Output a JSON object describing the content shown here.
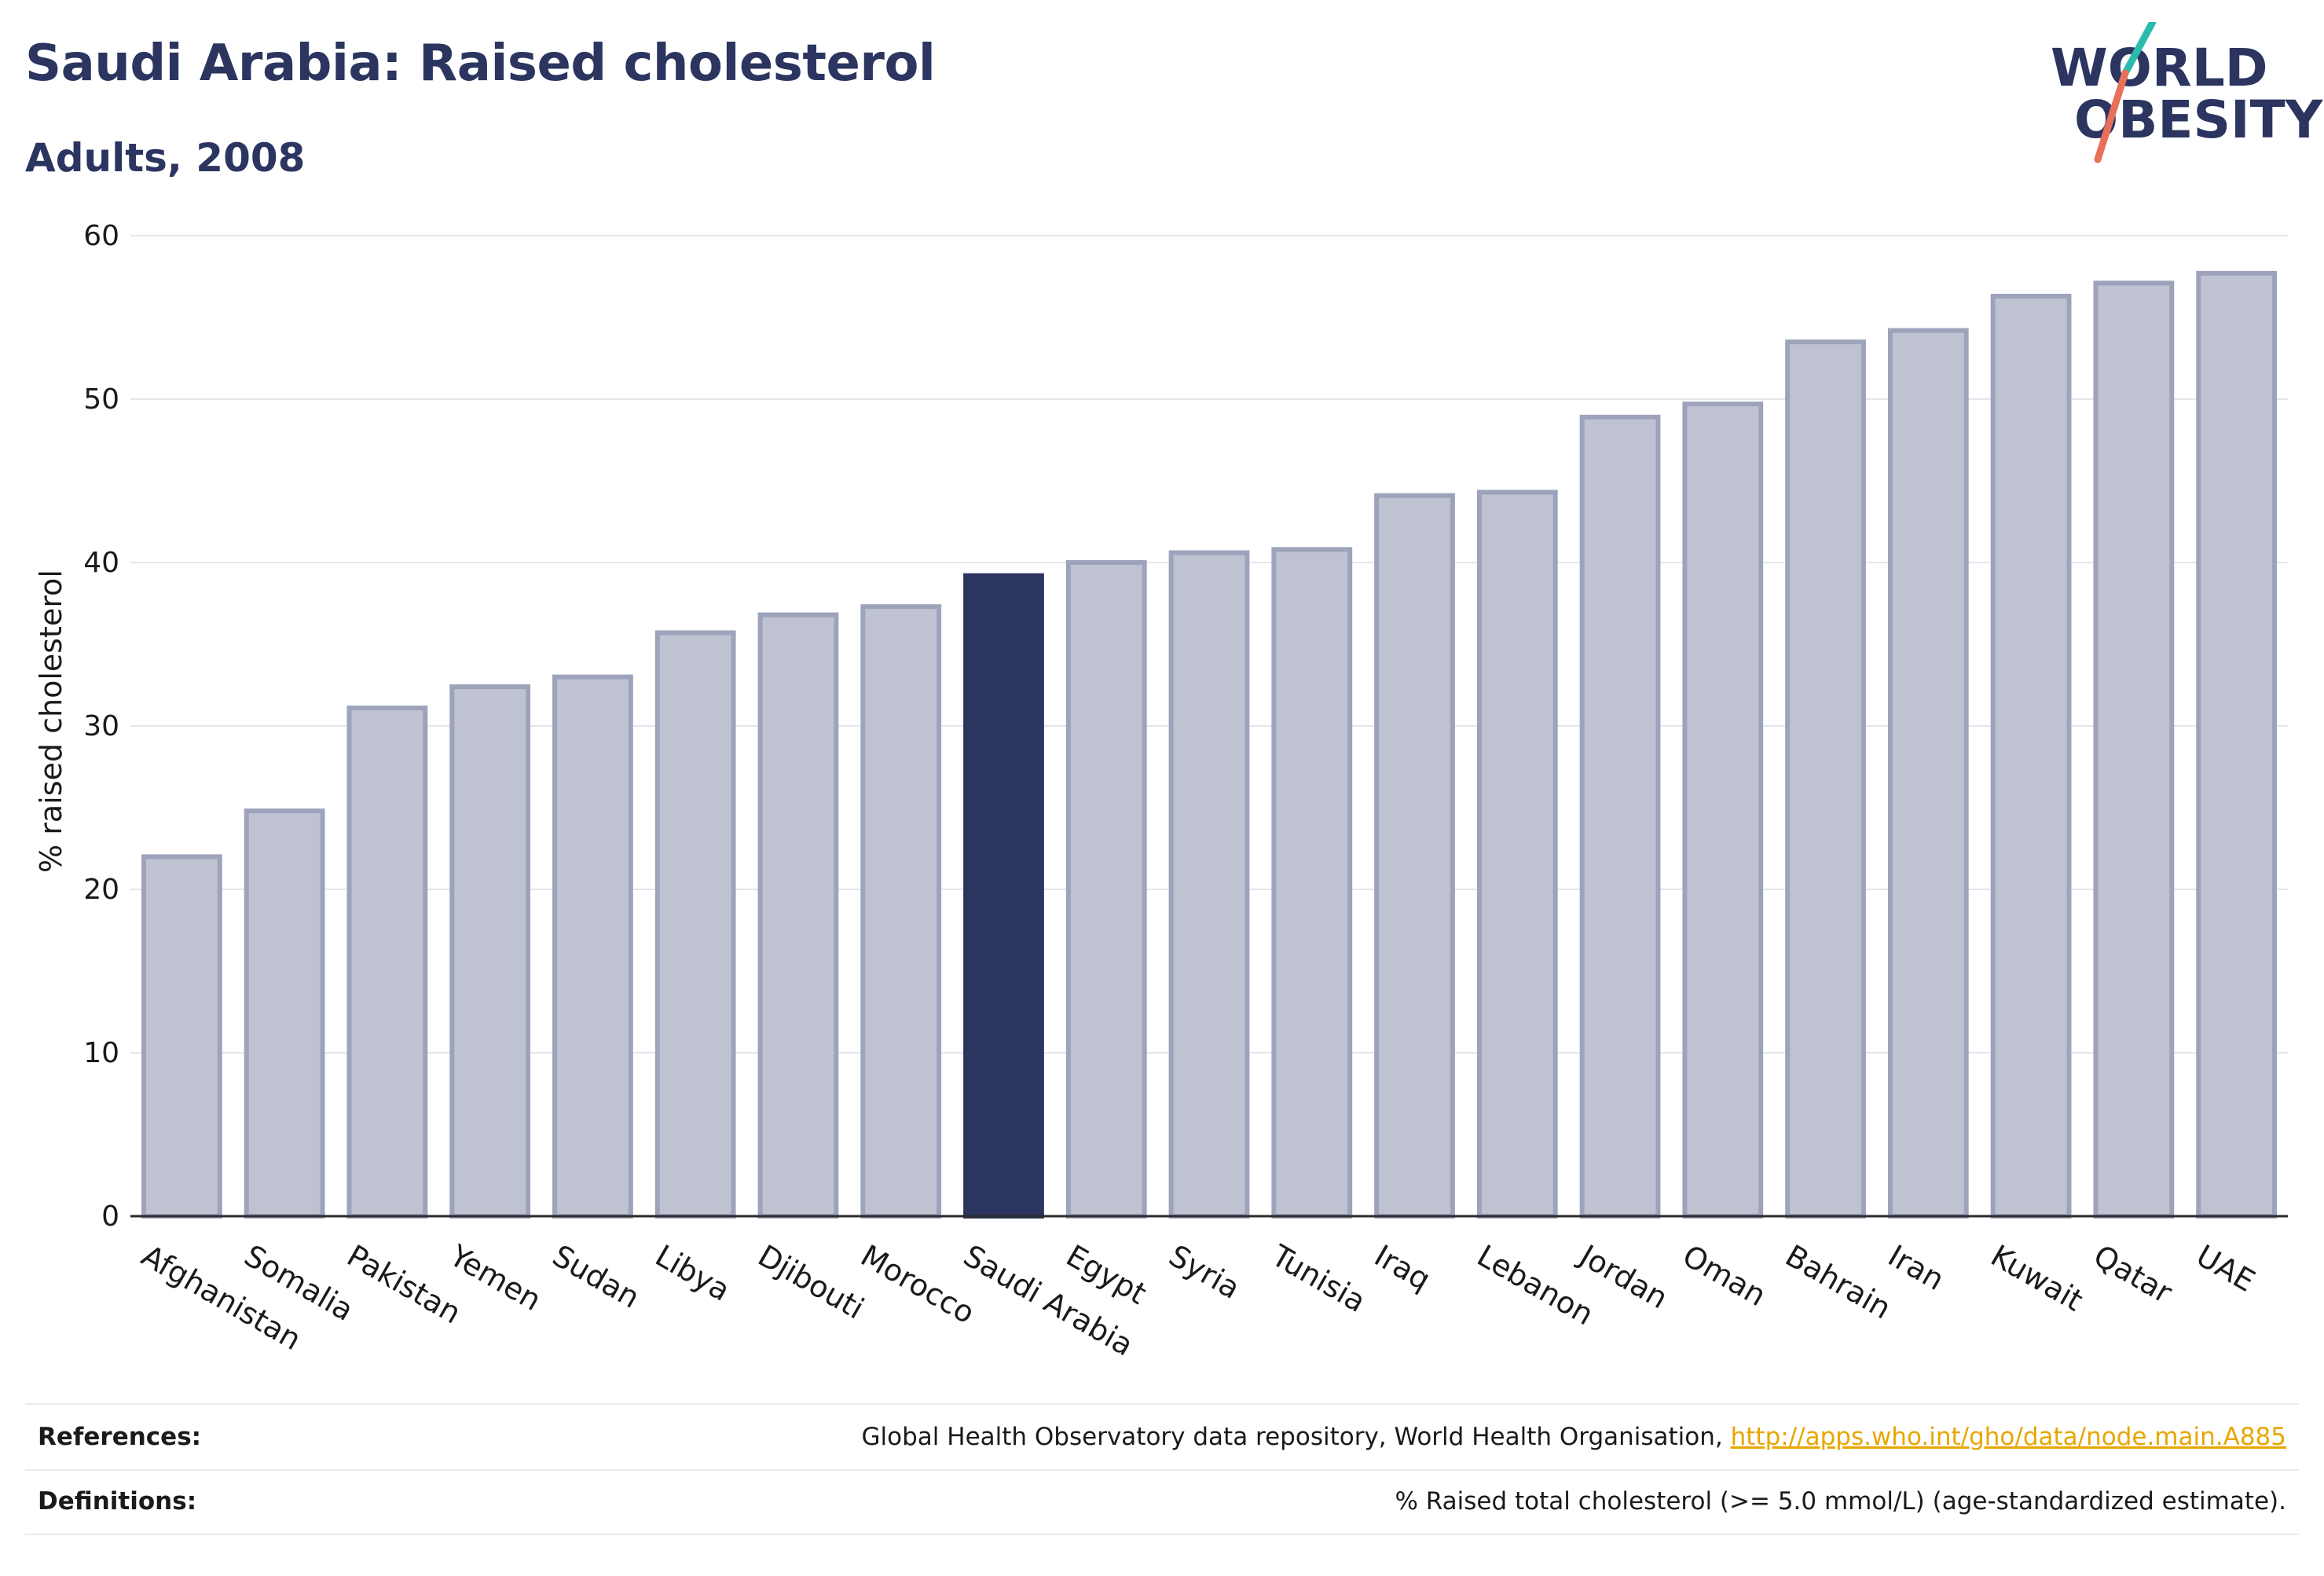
{
  "header": {
    "title": "Saudi Arabia: Raised cholesterol",
    "subtitle": "Adults, 2008"
  },
  "logo": {
    "line1": "WORLD",
    "line2": "OBESITY",
    "accent_colors": [
      "#2bbbad",
      "#e8705a"
    ]
  },
  "chart_data": {
    "type": "bar",
    "title": "Saudi Arabia: Raised cholesterol",
    "subtitle": "Adults, 2008",
    "xlabel": "",
    "ylabel": "% raised cholesterol",
    "ylim": [
      0,
      60
    ],
    "yticks": [
      0,
      10,
      20,
      30,
      40,
      50,
      60
    ],
    "grid": true,
    "highlight": "Saudi Arabia",
    "colors": {
      "bar": "#bfc3d1",
      "bar_edge": "#9da3bb",
      "highlight": "#2b3560"
    },
    "categories": [
      "Afghanistan",
      "Somalia",
      "Pakistan",
      "Yemen",
      "Sudan",
      "Libya",
      "Djibouti",
      "Morocco",
      "Saudi Arabia",
      "Egypt",
      "Syria",
      "Tunisia",
      "Iraq",
      "Lebanon",
      "Jordan",
      "Oman",
      "Bahrain",
      "Iran",
      "Kuwait",
      "Qatar",
      "UAE"
    ],
    "values": [
      22.0,
      24.8,
      31.1,
      32.4,
      33.0,
      35.7,
      36.8,
      37.3,
      39.2,
      40.0,
      40.6,
      40.8,
      44.1,
      44.3,
      48.9,
      49.7,
      53.5,
      54.2,
      56.3,
      57.1,
      57.7
    ]
  },
  "footer": {
    "references_label": "References:",
    "references_text": "Global Health Observatory data repository, World Health Organisation,",
    "references_link": "http://apps.who.int/gho/data/node.main.A885",
    "definitions_label": "Definitions:",
    "definitions_text": "% Raised total cholesterol (>= 5.0 mmol/L) (age-standardized estimate)."
  }
}
